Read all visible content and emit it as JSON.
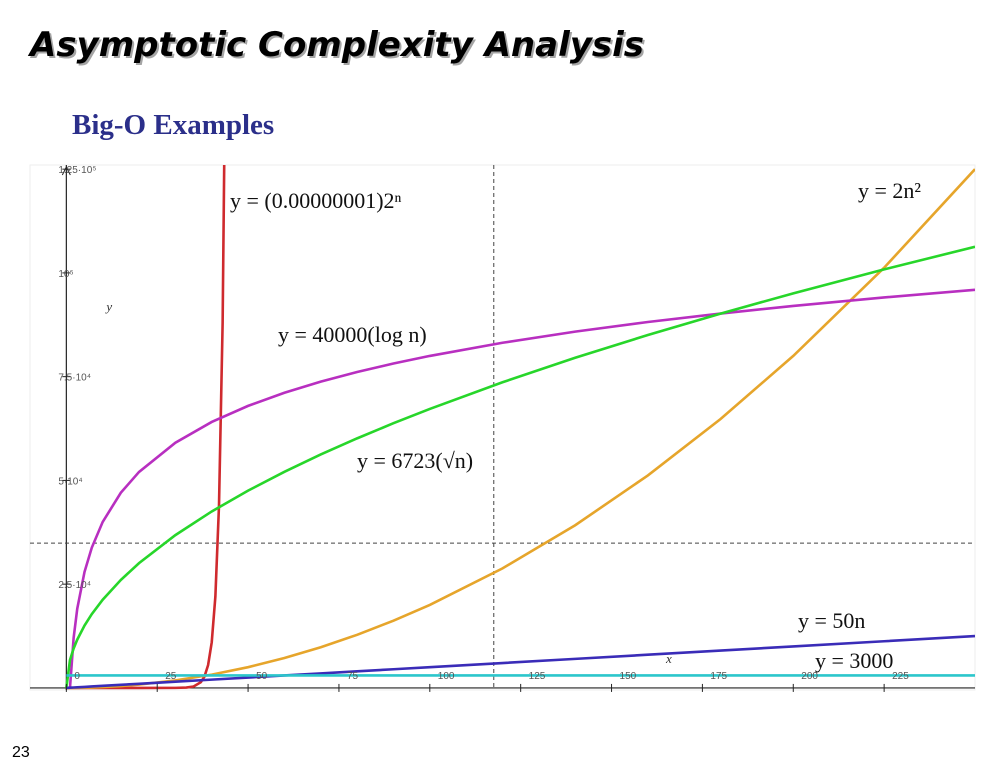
{
  "slide_title": "Asymptotic Complexity Analysis",
  "page_number": 23,
  "chart_data": {
    "type": "line",
    "title": "Big-O Examples",
    "x_label": "x",
    "y_label": "y",
    "xlim": [
      -10,
      250
    ],
    "ylim": [
      -500,
      126000
    ],
    "xticks": [
      0,
      25,
      50,
      75,
      100,
      125,
      150,
      175,
      200,
      225
    ],
    "yticks": [
      {
        "value": 25000,
        "label": "2.5·10⁴"
      },
      {
        "value": 50000,
        "label": "5·10⁴"
      },
      {
        "value": 75000,
        "label": "7.5·10⁴"
      },
      {
        "value": 100000,
        "label": "10⁵"
      },
      {
        "value": 125000,
        "label": "1.25·10⁵"
      }
    ],
    "grid": false,
    "reference_lines": {
      "x": 117.6,
      "y": 34900
    },
    "x": [
      0,
      1,
      2,
      3,
      5,
      7,
      10,
      15,
      20,
      30,
      40,
      50,
      60,
      70,
      80,
      90,
      100,
      120,
      140,
      160,
      180,
      200,
      225,
      250
    ],
    "series": [
      {
        "name": "y = (0.00000001)2ⁿ",
        "color": "#cf2a2e",
        "x": [
          0,
          10,
          20,
          30,
          33,
          35,
          37,
          38,
          39,
          40,
          41,
          42,
          43,
          44
        ],
        "values": [
          1e-08,
          1.024e-05,
          0.01048576,
          10.74,
          85.9,
          343.6,
          1374.4,
          2748.8,
          5497.6,
          10995.1,
          21990.2,
          43980.5,
          87960.9,
          175921.9
        ]
      },
      {
        "name": "y = 2n²",
        "color": "#e6a52b",
        "values": [
          0,
          2,
          8,
          18,
          50,
          98,
          200,
          450,
          800,
          1800,
          3200,
          5000,
          7200,
          9800,
          12800,
          16200,
          20000,
          28800,
          39200,
          51200,
          64800,
          80000,
          101250,
          125000
        ]
      },
      {
        "name": "y = 40000(log n)",
        "color": "#b82fc0",
        "values": [
          null,
          0,
          12041,
          19085,
          27959,
          33804,
          40000,
          47044,
          52041,
          59085,
          64082,
          67959,
          71126,
          73804,
          76124,
          78170,
          80000,
          83167,
          85845,
          88165,
          90211,
          92041,
          94087,
          95918
        ]
      },
      {
        "name": "y = 6723(√n)",
        "color": "#27d62a",
        "values": [
          0,
          6723,
          9508,
          11645,
          15033,
          17787,
          21260,
          26038,
          30066,
          36823,
          42520,
          47539,
          52076,
          56249,
          60132,
          63780,
          67230,
          73647,
          79548,
          85040,
          90199,
          95078,
          100845,
          106300
        ]
      },
      {
        "name": "y = 50n",
        "color": "#3a2cb8",
        "values": [
          0,
          50,
          100,
          150,
          250,
          350,
          500,
          750,
          1000,
          1500,
          2000,
          2500,
          3000,
          3500,
          4000,
          4500,
          5000,
          6000,
          7000,
          8000,
          9000,
          10000,
          11250,
          12500
        ]
      },
      {
        "name": "y = 3000",
        "color": "#2cc6cb",
        "values": [
          3000,
          3000,
          3000,
          3000,
          3000,
          3000,
          3000,
          3000,
          3000,
          3000,
          3000,
          3000,
          3000,
          3000,
          3000,
          3000,
          3000,
          3000,
          3000,
          3000,
          3000,
          3000,
          3000,
          3000
        ]
      }
    ]
  }
}
